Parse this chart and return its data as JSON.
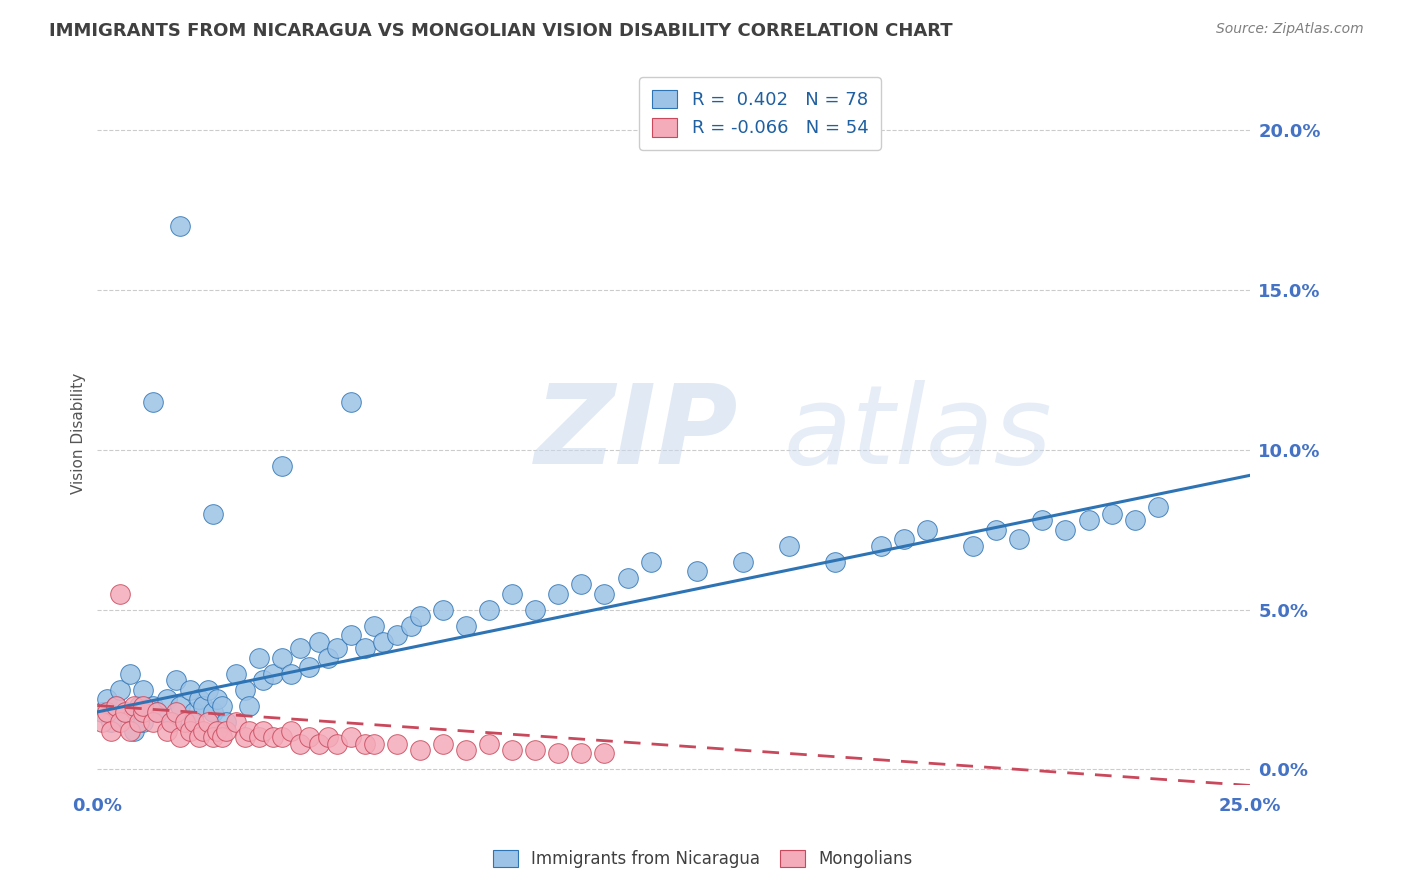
{
  "title": "IMMIGRANTS FROM NICARAGUA VS MONGOLIAN VISION DISABILITY CORRELATION CHART",
  "source": "Source: ZipAtlas.com",
  "ylabel": "Vision Disability",
  "ylabel_right_ticks": [
    "0.0%",
    "5.0%",
    "10.0%",
    "15.0%",
    "20.0%"
  ],
  "ylabel_right_vals": [
    0.0,
    0.05,
    0.1,
    0.15,
    0.2
  ],
  "xlim": [
    0.0,
    0.25
  ],
  "ylim": [
    -0.005,
    0.215
  ],
  "legend_blue_R": "0.402",
  "legend_blue_N": "78",
  "legend_pink_R": "-0.066",
  "legend_pink_N": "54",
  "blue_color": "#9DC3E6",
  "pink_color": "#F4ABBA",
  "blue_line_color": "#2E74B5",
  "pink_line_color": "#C9485B",
  "title_color": "#404040",
  "axis_label_color": "#4472C4",
  "background_color": "#FFFFFF",
  "blue_scatter_x": [
    0.001,
    0.002,
    0.003,
    0.004,
    0.005,
    0.006,
    0.007,
    0.008,
    0.009,
    0.01,
    0.01,
    0.012,
    0.013,
    0.015,
    0.016,
    0.017,
    0.018,
    0.019,
    0.02,
    0.021,
    0.022,
    0.023,
    0.024,
    0.025,
    0.026,
    0.027,
    0.028,
    0.03,
    0.032,
    0.033,
    0.035,
    0.036,
    0.038,
    0.04,
    0.042,
    0.044,
    0.046,
    0.048,
    0.05,
    0.052,
    0.055,
    0.058,
    0.06,
    0.062,
    0.065,
    0.068,
    0.07,
    0.075,
    0.08,
    0.085,
    0.09,
    0.095,
    0.1,
    0.105,
    0.11,
    0.115,
    0.12,
    0.13,
    0.14,
    0.15,
    0.16,
    0.17,
    0.175,
    0.18,
    0.19,
    0.195,
    0.2,
    0.205,
    0.21,
    0.215,
    0.22,
    0.225,
    0.23,
    0.055,
    0.04,
    0.025,
    0.018,
    0.012
  ],
  "blue_scatter_y": [
    0.018,
    0.022,
    0.015,
    0.02,
    0.025,
    0.018,
    0.03,
    0.012,
    0.02,
    0.015,
    0.025,
    0.02,
    0.018,
    0.022,
    0.015,
    0.028,
    0.02,
    0.015,
    0.025,
    0.018,
    0.022,
    0.02,
    0.025,
    0.018,
    0.022,
    0.02,
    0.015,
    0.03,
    0.025,
    0.02,
    0.035,
    0.028,
    0.03,
    0.035,
    0.03,
    0.038,
    0.032,
    0.04,
    0.035,
    0.038,
    0.042,
    0.038,
    0.045,
    0.04,
    0.042,
    0.045,
    0.048,
    0.05,
    0.045,
    0.05,
    0.055,
    0.05,
    0.055,
    0.058,
    0.055,
    0.06,
    0.065,
    0.062,
    0.065,
    0.07,
    0.065,
    0.07,
    0.072,
    0.075,
    0.07,
    0.075,
    0.072,
    0.078,
    0.075,
    0.078,
    0.08,
    0.078,
    0.082,
    0.115,
    0.095,
    0.08,
    0.17,
    0.115
  ],
  "pink_scatter_x": [
    0.001,
    0.002,
    0.003,
    0.004,
    0.005,
    0.006,
    0.007,
    0.008,
    0.009,
    0.01,
    0.01,
    0.012,
    0.013,
    0.015,
    0.016,
    0.017,
    0.018,
    0.019,
    0.02,
    0.021,
    0.022,
    0.023,
    0.024,
    0.025,
    0.026,
    0.027,
    0.028,
    0.03,
    0.032,
    0.033,
    0.035,
    0.036,
    0.038,
    0.04,
    0.042,
    0.044,
    0.046,
    0.048,
    0.05,
    0.052,
    0.055,
    0.058,
    0.06,
    0.065,
    0.07,
    0.075,
    0.08,
    0.085,
    0.09,
    0.095,
    0.1,
    0.105,
    0.11,
    0.005
  ],
  "pink_scatter_y": [
    0.015,
    0.018,
    0.012,
    0.02,
    0.015,
    0.018,
    0.012,
    0.02,
    0.015,
    0.018,
    0.02,
    0.015,
    0.018,
    0.012,
    0.015,
    0.018,
    0.01,
    0.015,
    0.012,
    0.015,
    0.01,
    0.012,
    0.015,
    0.01,
    0.012,
    0.01,
    0.012,
    0.015,
    0.01,
    0.012,
    0.01,
    0.012,
    0.01,
    0.01,
    0.012,
    0.008,
    0.01,
    0.008,
    0.01,
    0.008,
    0.01,
    0.008,
    0.008,
    0.008,
    0.006,
    0.008,
    0.006,
    0.008,
    0.006,
    0.006,
    0.005,
    0.005,
    0.005,
    0.055
  ],
  "blue_trend_x0": 0.0,
  "blue_trend_x1": 0.25,
  "blue_trend_y0": 0.018,
  "blue_trend_y1": 0.092,
  "pink_trend_x0": 0.0,
  "pink_trend_x1": 0.25,
  "pink_trend_y0": 0.02,
  "pink_trend_y1": -0.005
}
